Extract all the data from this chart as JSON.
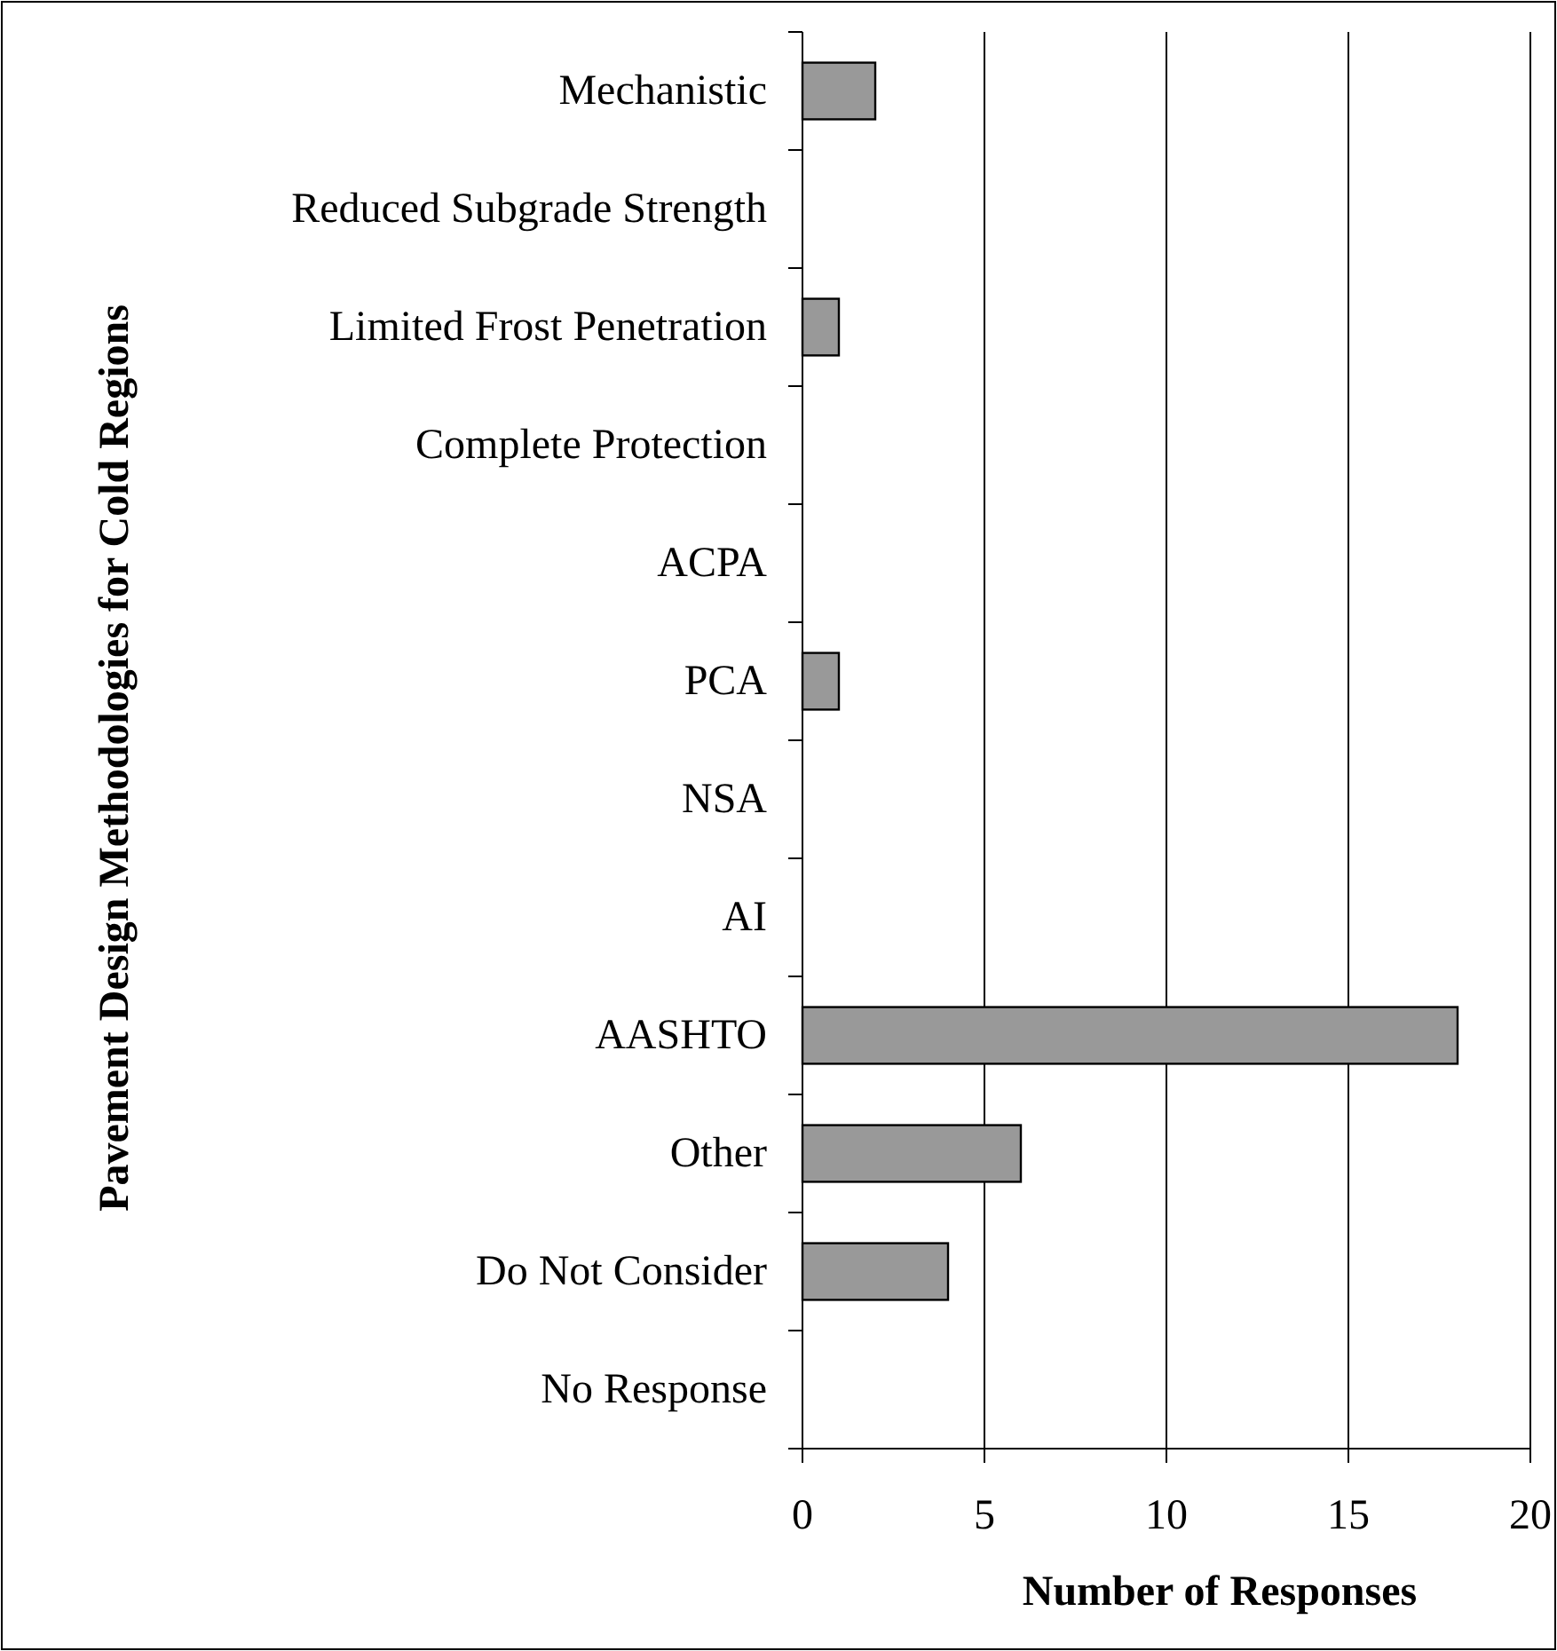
{
  "chart_data": {
    "type": "bar",
    "orientation": "horizontal",
    "xlabel": "Number of Responses",
    "ylabel": "Pavement Design Methodologies for Cold Regions",
    "categories": [
      "Mechanistic",
      "Reduced Subgrade Strength",
      "Limited Frost Penetration",
      "Complete Protection",
      "ACPA",
      "PCA",
      "NSA",
      "AI",
      "AASHTO",
      "Other",
      "Do Not Consider",
      "No Response"
    ],
    "values": [
      2,
      0,
      1,
      0,
      0,
      1,
      0,
      0,
      18,
      6,
      4,
      0
    ],
    "color": "#999999",
    "xlim": [
      0,
      20
    ],
    "xticks": [
      0,
      5,
      10,
      15,
      20
    ],
    "grid": "x"
  }
}
